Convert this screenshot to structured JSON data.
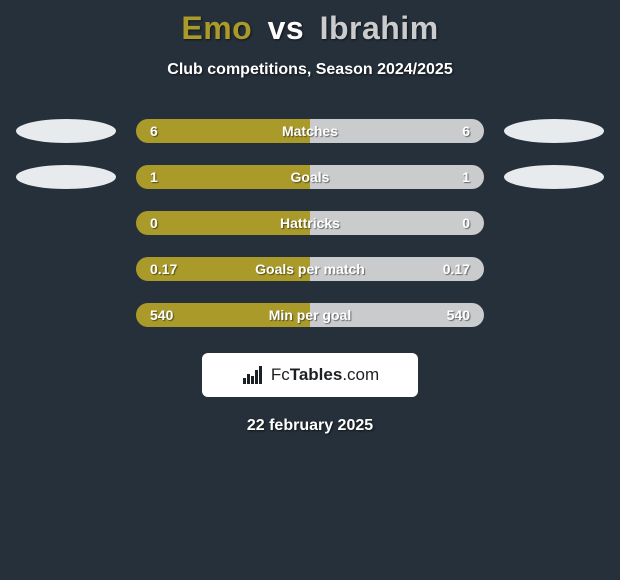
{
  "background_color": "#26303a",
  "title": {
    "player1": "Emo",
    "vs": "vs",
    "player2": "Ibrahim",
    "player1_color": "#a99a2a",
    "player2_color": "#c9cbcd"
  },
  "subtitle": "Club competitions, Season 2024/2025",
  "left_color": "#a99a2a",
  "right_color": "#c9cbcd",
  "bar_neutral_color": "#3a4550",
  "disc_left_color": "#e8ebed",
  "disc_right_color": "#e8ebed",
  "rows": [
    {
      "label": "Matches",
      "left_val": "6",
      "right_val": "6",
      "left_pct": 50,
      "right_pct": 50,
      "show_discs": true
    },
    {
      "label": "Goals",
      "left_val": "1",
      "right_val": "1",
      "left_pct": 50,
      "right_pct": 50,
      "show_discs": true
    },
    {
      "label": "Hattricks",
      "left_val": "0",
      "right_val": "0",
      "left_pct": 50,
      "right_pct": 50,
      "show_discs": false
    },
    {
      "label": "Goals per match",
      "left_val": "0.17",
      "right_val": "0.17",
      "left_pct": 50,
      "right_pct": 50,
      "show_discs": false
    },
    {
      "label": "Min per goal",
      "left_val": "540",
      "right_val": "540",
      "left_pct": 50,
      "right_pct": 50,
      "show_discs": false
    }
  ],
  "logo": {
    "bg_color": "#ffffff",
    "text_color": "#1d2023",
    "bar_colors": [
      "#1d2023",
      "#1d2023",
      "#1d2023",
      "#1d2023",
      "#1d2023"
    ],
    "text_fc": "Fc",
    "text_tables": "Tables",
    "text_com": ".com"
  },
  "date": "22 february 2025"
}
